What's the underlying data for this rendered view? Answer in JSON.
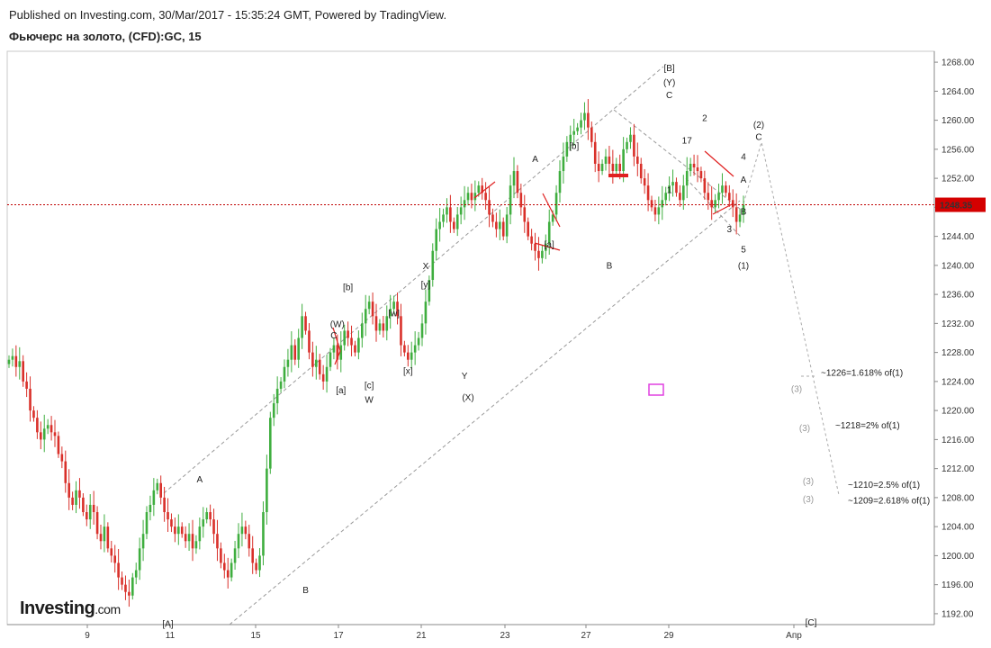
{
  "header": {
    "published": "Published on Investing.com, 30/Mar/2017 - 15:35:24 GMT, Powered by TradingView.",
    "symbol": "Фьючерс на золото, (CFD):GC, 15"
  },
  "logo": {
    "text": "Investing",
    "suffix": ".com"
  },
  "colors": {
    "up": "#3fae3f",
    "down": "#d9302a",
    "price_line": "#c00000",
    "price_label_bg": "#d40000",
    "trend": "#9a9a9a"
  },
  "chart_data": {
    "type": "line",
    "title": "Фьючерс на золото, (CFD):GC, 15",
    "ylim": [
      1190.5,
      1269.5
    ],
    "y_ticks": [
      "1268.00",
      "1264.00",
      "1260.00",
      "1256.00",
      "1252.00",
      "1248.00",
      "1244.00",
      "1240.00",
      "1236.00",
      "1232.00",
      "1228.00",
      "1224.00",
      "1220.00",
      "1216.00",
      "1212.00",
      "1208.00",
      "1204.00",
      "1200.00",
      "1196.00",
      "1192.00"
    ],
    "x_ticks": [
      "9",
      "11",
      "15",
      "17",
      "21",
      "23",
      "27",
      "29",
      "Апр"
    ],
    "current_price": "1248.35",
    "series": [
      {
        "values": [
          1227,
          1227.5,
          1226,
          1226.8,
          1224,
          1223,
          1220,
          1219,
          1217,
          1216,
          1217.5,
          1218,
          1217,
          1216.5,
          1214,
          1213,
          1210,
          1208,
          1207,
          1209,
          1208,
          1206,
          1205,
          1207,
          1206,
          1203,
          1202,
          1204,
          1201,
          1200,
          1199,
          1197,
          1196,
          1195,
          1194.5,
          1197,
          1198,
          1201,
          1203,
          1206,
          1207,
          1209,
          1210,
          1208,
          1206,
          1205,
          1204,
          1203,
          1204,
          1203,
          1202,
          1203,
          1201,
          1202,
          1204,
          1205,
          1206,
          1205,
          1203,
          1201,
          1199,
          1198,
          1197,
          1199,
          1201,
          1203,
          1204,
          1203,
          1201,
          1199,
          1198,
          1200,
          1206,
          1212,
          1219,
          1221,
          1223,
          1224,
          1226,
          1227,
          1229,
          1227,
          1230,
          1233,
          1231,
          1228,
          1226,
          1227,
          1225,
          1224,
          1226,
          1228,
          1229,
          1227,
          1229,
          1231,
          1230,
          1229,
          1228,
          1230,
          1232,
          1234,
          1235,
          1233,
          1231,
          1232,
          1231,
          1233,
          1234,
          1235,
          1233,
          1229,
          1228,
          1227,
          1228,
          1229,
          1230,
          1232,
          1235,
          1238,
          1242,
          1245,
          1246,
          1247,
          1248,
          1246,
          1245,
          1247,
          1248,
          1249,
          1250,
          1249,
          1250,
          1251,
          1250,
          1249,
          1247,
          1246,
          1245,
          1246,
          1244,
          1247,
          1251,
          1253,
          1250,
          1248,
          1246,
          1244,
          1243,
          1242,
          1241,
          1242,
          1243,
          1246,
          1247,
          1250,
          1253,
          1255,
          1257,
          1258,
          1258.5,
          1259,
          1260,
          1261,
          1259,
          1257,
          1254,
          1253,
          1254,
          1255,
          1254,
          1253,
          1254,
          1253,
          1256,
          1257,
          1258,
          1255,
          1254,
          1252,
          1251,
          1249,
          1248,
          1247,
          1248,
          1249,
          1250,
          1251,
          1251.5,
          1250,
          1249,
          1251,
          1253,
          1254,
          1253.5,
          1253,
          1252,
          1250,
          1249,
          1248,
          1249,
          1250,
          1251,
          1250,
          1249,
          1248,
          1246,
          1247,
          1248.35
        ]
      }
    ]
  },
  "annotations": [
    {
      "t": "[B]",
      "v": 1267.2,
      "ix": 187,
      "g": false
    },
    {
      "t": "(Y)",
      "v": 1265.2,
      "ix": 187,
      "g": false
    },
    {
      "t": "C",
      "v": 1263.5,
      "ix": 187,
      "g": false
    },
    {
      "t": "2",
      "v": 1260.3,
      "ix": 197,
      "g": false
    },
    {
      "t": "17",
      "v": 1257.2,
      "ix": 192,
      "g": false
    },
    {
      "t": "[b]",
      "v": 1256.5,
      "ix": 160,
      "g": false
    },
    {
      "t": "A",
      "v": 1254.7,
      "ix": 149,
      "g": false
    },
    {
      "t": "4",
      "v": 1255.0,
      "ix": 222,
      "g": false
    },
    {
      "t": "A",
      "v": 1251.8,
      "ix": 225,
      "g": false
    },
    {
      "t": "1",
      "v": 1250.4,
      "ix": 187,
      "g": false
    },
    {
      "t": "3",
      "v": 1245.0,
      "ix": 204,
      "g": false
    },
    {
      "t": "B",
      "v": 1247.4,
      "ix": 228,
      "g": false
    },
    {
      "t": "[a]",
      "v": 1242.9,
      "ix": 153,
      "g": false
    },
    {
      "t": "5",
      "v": 1242.2,
      "ix": 223,
      "g": false
    },
    {
      "t": "B",
      "v": 1240.0,
      "ix": 170,
      "g": false
    },
    {
      "t": "(1)",
      "v": 1240.0,
      "ix": 223,
      "g": false
    },
    {
      "t": "X",
      "v": 1239.9,
      "ix": 118,
      "g": false
    },
    {
      "t": "[y]",
      "v": 1237.4,
      "ix": 118,
      "g": false
    },
    {
      "t": "[b]",
      "v": 1237.0,
      "ix": 96,
      "g": false
    },
    {
      "t": "[w]",
      "v": 1233.4,
      "ix": 109,
      "g": false
    },
    {
      "t": "(W)",
      "v": 1231.9,
      "ix": 93,
      "g": false
    },
    {
      "t": "C",
      "v": 1230.4,
      "ix": 92,
      "g": false
    },
    {
      "t": "[x]",
      "v": 1225.5,
      "ix": 113,
      "g": false
    },
    {
      "t": "Y",
      "v": 1224.8,
      "ix": 129,
      "g": false
    },
    {
      "t": "[c]",
      "v": 1223.5,
      "ix": 102,
      "g": false
    },
    {
      "t": "[a]",
      "v": 1222.8,
      "ix": 94,
      "g": false
    },
    {
      "t": "W",
      "v": 1221.5,
      "ix": 102,
      "g": false
    },
    {
      "t": "(X)",
      "v": 1221.8,
      "ix": 130,
      "g": false
    },
    {
      "t": "A",
      "v": 1210.5,
      "ix": 54,
      "g": false
    },
    {
      "t": "B",
      "v": 1195.3,
      "ix": 84,
      "g": false
    },
    {
      "t": "[A]",
      "v": 1190.6,
      "ix": 45,
      "g": false
    }
  ],
  "future_labels": [
    {
      "t": "(2)",
      "v": 1259.4,
      "x": 843,
      "g": false
    },
    {
      "t": "C",
      "v": 1257.7,
      "x": 843,
      "g": false
    },
    {
      "t": "~1226=1.618% of(1)",
      "v": 1225.2,
      "x": 912,
      "g": false
    },
    {
      "t": "(3)",
      "v": 1223.0,
      "x": 885,
      "g": true
    },
    {
      "t": "~1218=2% of(1)",
      "v": 1218.0,
      "x": 928,
      "g": false
    },
    {
      "t": "(3)",
      "v": 1217.6,
      "x": 894,
      "g": true
    },
    {
      "t": "~1210=2.5% of(1)",
      "v": 1209.8,
      "x": 942,
      "g": false
    },
    {
      "t": "(3)",
      "v": 1210.3,
      "x": 898,
      "g": true
    },
    {
      "t": "~1209=2.618% of(1)",
      "v": 1207.6,
      "x": 942,
      "g": false
    },
    {
      "t": "(3)",
      "v": 1207.8,
      "x": 898,
      "g": true
    },
    {
      "t": "[C]",
      "v": 1190.8,
      "x": 901,
      "g": false
    }
  ]
}
